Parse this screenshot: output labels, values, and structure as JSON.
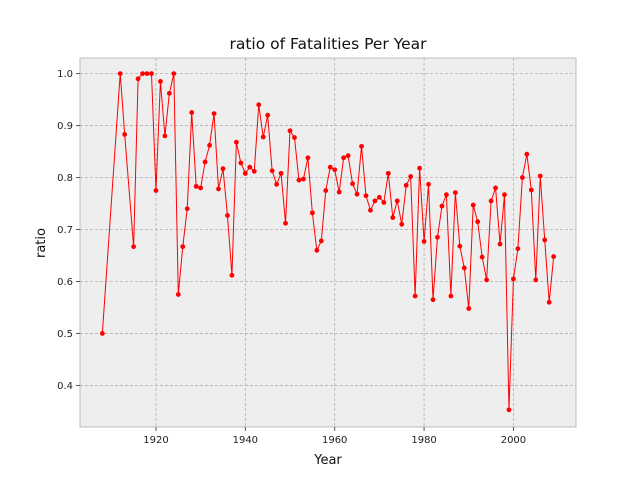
{
  "chart_data": {
    "type": "line",
    "title": "ratio of Fatalities Per Year",
    "xlabel": "Year",
    "ylabel": "ratio",
    "xlim": [
      1903,
      2014
    ],
    "ylim": [
      0.32,
      1.03
    ],
    "xticks": [
      1920,
      1940,
      1960,
      1980,
      2000
    ],
    "yticks": [
      0.4,
      0.5,
      0.6,
      0.7,
      0.8,
      0.9,
      1.0
    ],
    "grid": true,
    "colors": {
      "line": "#ff0000",
      "plot_background": "#eeeeee",
      "grid": "#b0b0b0"
    },
    "series": [
      {
        "x": [
          1908,
          1912,
          1913,
          1915,
          1916,
          1917,
          1918,
          1919,
          1920,
          1921,
          1922,
          1923,
          1924,
          1925,
          1926,
          1927,
          1928,
          1929,
          1930,
          1931,
          1932,
          1933,
          1934,
          1935,
          1936,
          1937,
          1938,
          1939,
          1940,
          1941,
          1942,
          1943,
          1944,
          1945,
          1946,
          1947,
          1948,
          1949,
          1950,
          1951,
          1952,
          1953,
          1954,
          1955,
          1956,
          1957,
          1958,
          1959,
          1960,
          1961,
          1962,
          1963,
          1964,
          1965,
          1966,
          1967,
          1968,
          1969,
          1970,
          1971,
          1972,
          1973,
          1974,
          1975,
          1976,
          1977,
          1978,
          1979,
          1980,
          1981,
          1982,
          1983,
          1984,
          1985,
          1986,
          1987,
          1988,
          1989,
          1990,
          1991,
          1992,
          1993,
          1994,
          1995,
          1996,
          1997,
          1998,
          1999,
          2000,
          2001,
          2002,
          2003,
          2004,
          2005,
          2006,
          2007,
          2008,
          2009
        ],
        "y": [
          0.5,
          1.0,
          0.883,
          0.667,
          0.99,
          1.0,
          1.0,
          1.0,
          0.775,
          0.985,
          0.88,
          0.962,
          1.0,
          0.575,
          0.667,
          0.74,
          0.925,
          0.783,
          0.78,
          0.83,
          0.862,
          0.923,
          0.778,
          0.817,
          0.727,
          0.612,
          0.868,
          0.828,
          0.808,
          0.82,
          0.812,
          0.94,
          0.878,
          0.92,
          0.813,
          0.787,
          0.808,
          0.712,
          0.89,
          0.877,
          0.795,
          0.797,
          0.838,
          0.732,
          0.66,
          0.678,
          0.775,
          0.82,
          0.815,
          0.772,
          0.838,
          0.842,
          0.788,
          0.768,
          0.86,
          0.765,
          0.737,
          0.755,
          0.762,
          0.752,
          0.808,
          0.723,
          0.755,
          0.71,
          0.785,
          0.802,
          0.572,
          0.818,
          0.677,
          0.787,
          0.565,
          0.685,
          0.745,
          0.767,
          0.572,
          0.771,
          0.668,
          0.626,
          0.548,
          0.747,
          0.715,
          0.647,
          0.603,
          0.755,
          0.78,
          0.672,
          0.767,
          0.353,
          0.605,
          0.663,
          0.8,
          0.845,
          0.776,
          0.603,
          0.803,
          0.68,
          0.56,
          0.648
        ]
      }
    ]
  }
}
